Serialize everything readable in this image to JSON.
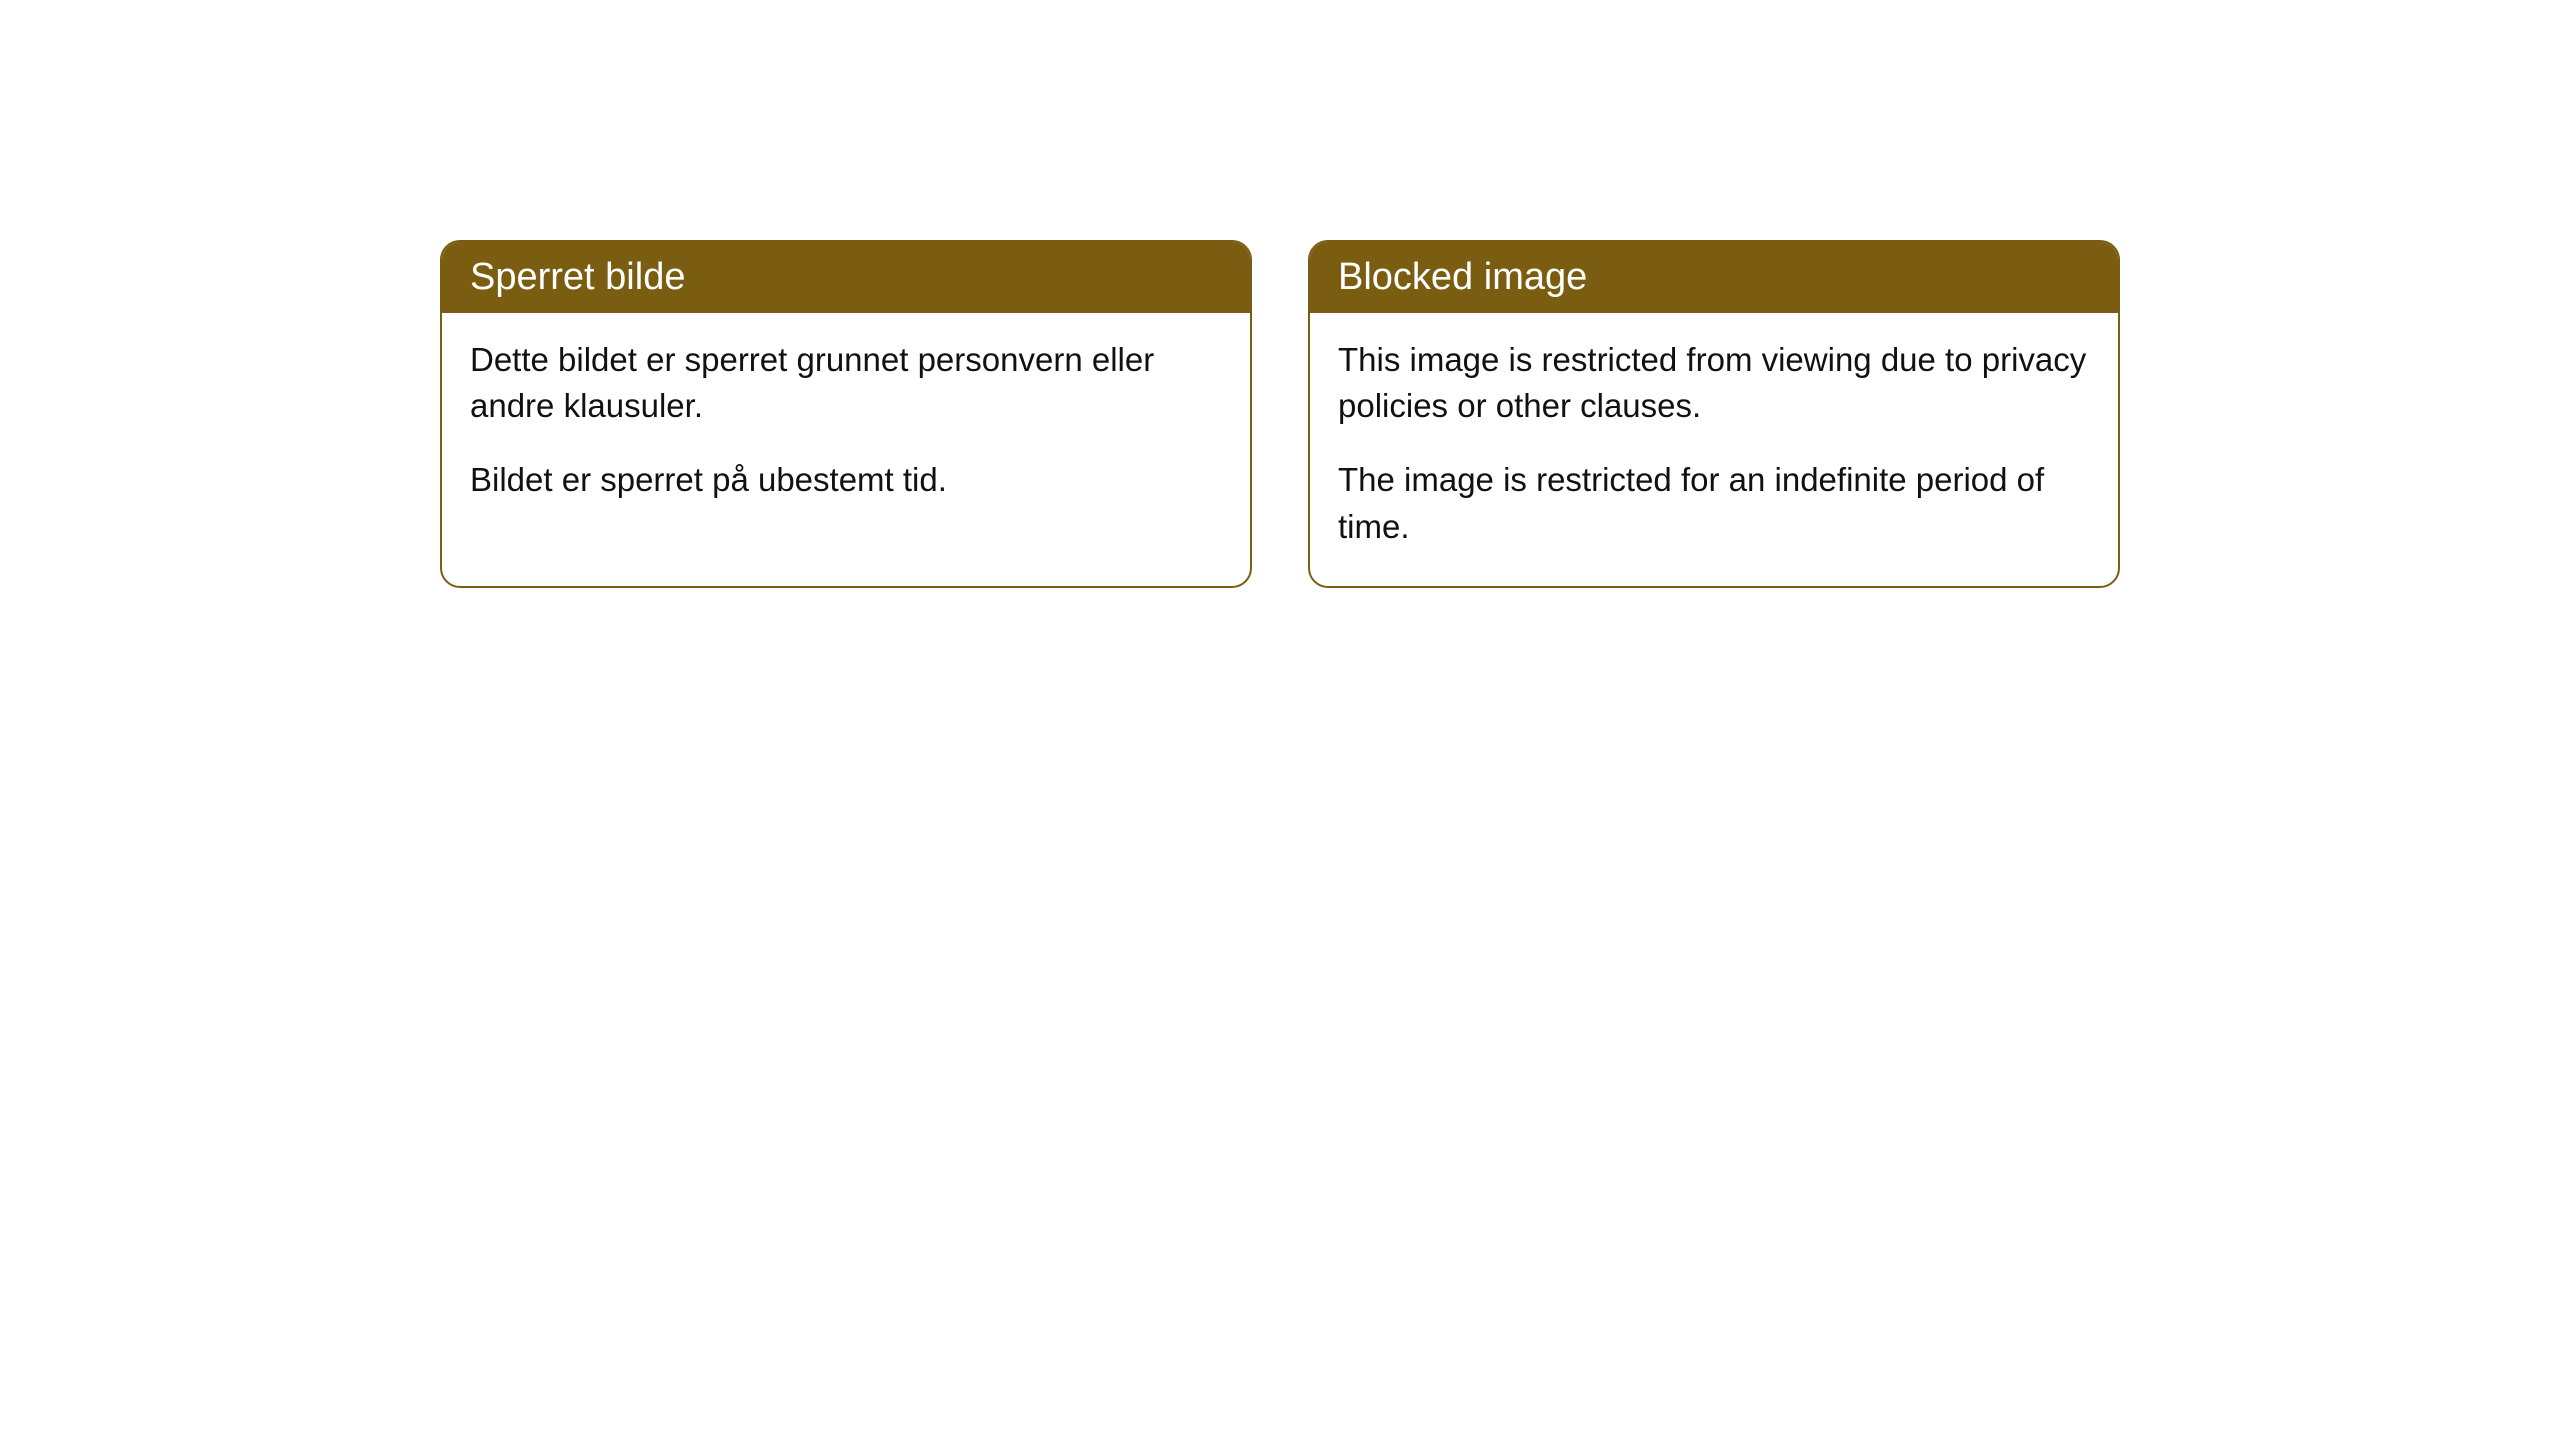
{
  "cards": [
    {
      "header": "Sperret bilde",
      "paragraph1": "Dette bildet er sperret grunnet personvern eller andre klausuler.",
      "paragraph2": "Bildet er sperret på ubestemt tid."
    },
    {
      "header": "Blocked image",
      "paragraph1": "This image is restricted from viewing due to privacy policies or other clauses.",
      "paragraph2": "The image is restricted for an indefinite period of time."
    }
  ],
  "colors": {
    "header_bg": "#7a5d10",
    "header_text": "#ffffff",
    "border": "#7a5d10",
    "body_text": "#111111",
    "page_bg": "#ffffff"
  }
}
